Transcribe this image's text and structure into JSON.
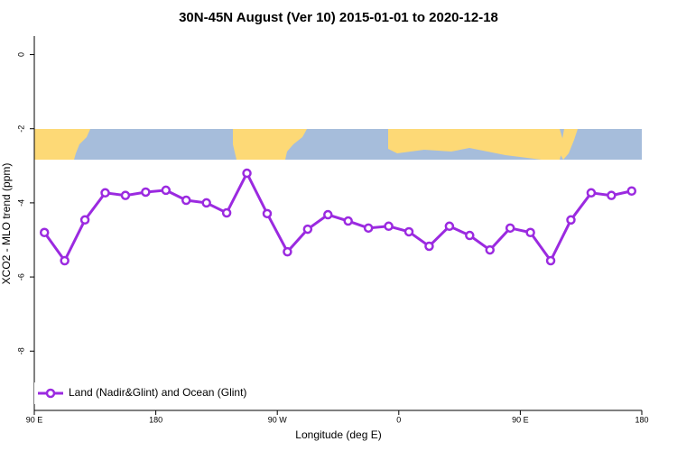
{
  "chart_data": {
    "type": "line",
    "title": "30N-45N August (Ver 10)   2015-01-01 to 2020-12-18",
    "x_label": "Longitude (deg E)",
    "y_label": "XCO2 - MLO trend (ppm)",
    "x": [
      97.5,
      112.5,
      127.5,
      142.5,
      157.5,
      172.5,
      187.5,
      202.5,
      217.5,
      232.5,
      247.5,
      262.5,
      277.5,
      292.5,
      307.5,
      322.5,
      337.5,
      352.5,
      367.5,
      382.5,
      397.5,
      412.5,
      427.5,
      442.5,
      457.5,
      472.5,
      487.5,
      502.5,
      517.5,
      532.5
    ],
    "series": [
      {
        "name": "Land (Nadir&Glint) and Ocean (Glint)",
        "color": "#9b2ae0",
        "values": [
          -4.8,
          -5.56,
          -4.46,
          -3.73,
          -3.8,
          -3.71,
          -3.66,
          -3.93,
          -4.0,
          -4.27,
          -3.2,
          -4.29,
          -5.32,
          -4.71,
          -4.32,
          -4.49,
          -4.68,
          -4.63,
          -4.78,
          -5.17,
          -4.63,
          -4.88,
          -5.27,
          -4.68,
          -4.8,
          -5.56,
          -4.46,
          -3.73,
          -3.8,
          -3.68
        ]
      }
    ],
    "xlim": [
      90,
      540
    ],
    "xticks": [
      {
        "value": 90,
        "label": "90 E"
      },
      180,
      {
        "value": 270,
        "label": "90 W"
      },
      {
        "value": 360,
        "label": "0"
      },
      {
        "value": 450,
        "label": "90 E"
      },
      {
        "value": 540,
        "label": "180"
      }
    ],
    "ylim": [
      -9.6,
      0.5
    ],
    "yticks": [
      0,
      -2,
      -4,
      -6,
      -8
    ],
    "legend": "bottom-left"
  }
}
